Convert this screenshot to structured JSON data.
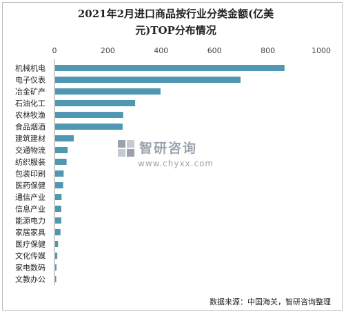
{
  "chart_data": {
    "type": "bar",
    "orientation": "horizontal",
    "title": "2021年2月进口商品按行业分类金额(亿美元)TOP分布情况",
    "title_lines": [
      "2021年2月进口商品按行业分类金额(亿美",
      "元)TOP分布情况"
    ],
    "categories": [
      "机械机电",
      "电子仪表",
      "冶金矿产",
      "石油化工",
      "农林牧渔",
      "食品烟酒",
      "建筑建材",
      "交通物流",
      "纺织服装",
      "包装印刷",
      "医药保健",
      "通信产业",
      "信息产业",
      "能源电力",
      "家居家具",
      "医疗保健",
      "文化传媒",
      "家电数码",
      "文教办公"
    ],
    "values": [
      860,
      695,
      395,
      300,
      255,
      253,
      70,
      47,
      43,
      32,
      30,
      24,
      23,
      23,
      20,
      11,
      8,
      5,
      4
    ],
    "xlim": [
      0,
      1000
    ],
    "xticks": [
      0,
      200,
      400,
      600,
      800,
      1000
    ],
    "axis_position": "top",
    "grid": false,
    "bar_color": "#4f97b3"
  },
  "watermark": {
    "name": "智研咨询",
    "url": "www.chyxx.com"
  },
  "source_text": "数据来源：中国海关，智研咨询整理"
}
